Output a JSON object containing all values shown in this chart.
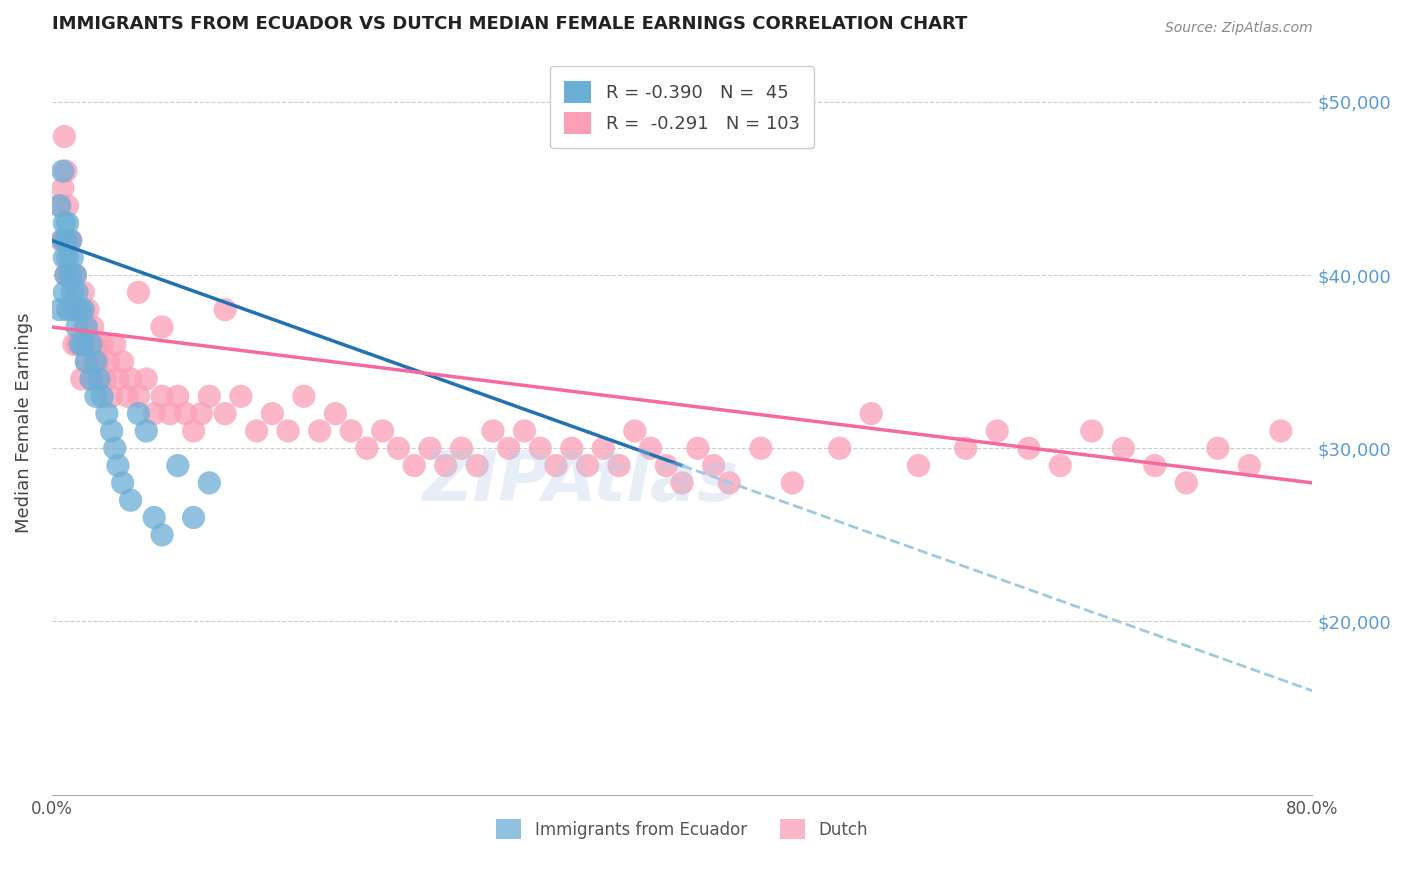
{
  "title": "IMMIGRANTS FROM ECUADOR VS DUTCH MEDIAN FEMALE EARNINGS CORRELATION CHART",
  "source": "Source: ZipAtlas.com",
  "ylabel": "Median Female Earnings",
  "ylim": [
    10000,
    53000
  ],
  "xlim": [
    0.0,
    0.8
  ],
  "legend_blue_r": "R = -0.390",
  "legend_blue_n": "N =  45",
  "legend_pink_r": "R =  -0.291",
  "legend_pink_n": "N = 103",
  "blue_color": "#6baed6",
  "pink_color": "#fa9fb5",
  "blue_line_color": "#2171b5",
  "pink_line_color": "#f768a1",
  "dashed_line_color": "#9ecae1",
  "watermark": "ZIPAtlas",
  "blue_scatter_x": [
    0.005,
    0.005,
    0.007,
    0.007,
    0.008,
    0.008,
    0.008,
    0.009,
    0.009,
    0.01,
    0.01,
    0.01,
    0.012,
    0.012,
    0.013,
    0.013,
    0.015,
    0.015,
    0.016,
    0.016,
    0.018,
    0.018,
    0.02,
    0.02,
    0.022,
    0.022,
    0.025,
    0.025,
    0.028,
    0.028,
    0.03,
    0.032,
    0.035,
    0.038,
    0.04,
    0.042,
    0.045,
    0.05,
    0.055,
    0.06,
    0.065,
    0.07,
    0.08,
    0.09,
    0.1
  ],
  "blue_scatter_y": [
    44000,
    38000,
    46000,
    42000,
    43000,
    41000,
    39000,
    42000,
    40000,
    43000,
    41000,
    38000,
    42000,
    40000,
    41000,
    39000,
    40000,
    38000,
    39000,
    37000,
    38000,
    36000,
    38000,
    36000,
    37000,
    35000,
    36000,
    34000,
    35000,
    33000,
    34000,
    33000,
    32000,
    31000,
    30000,
    29000,
    28000,
    27000,
    32000,
    31000,
    26000,
    25000,
    29000,
    26000,
    28000
  ],
  "pink_scatter_x": [
    0.005,
    0.006,
    0.007,
    0.008,
    0.009,
    0.01,
    0.01,
    0.011,
    0.012,
    0.013,
    0.014,
    0.015,
    0.015,
    0.016,
    0.017,
    0.018,
    0.019,
    0.02,
    0.021,
    0.022,
    0.023,
    0.024,
    0.025,
    0.026,
    0.027,
    0.028,
    0.029,
    0.03,
    0.032,
    0.034,
    0.036,
    0.038,
    0.04,
    0.042,
    0.045,
    0.048,
    0.05,
    0.055,
    0.06,
    0.065,
    0.07,
    0.075,
    0.08,
    0.085,
    0.09,
    0.095,
    0.1,
    0.11,
    0.12,
    0.13,
    0.14,
    0.15,
    0.16,
    0.17,
    0.18,
    0.19,
    0.2,
    0.21,
    0.22,
    0.23,
    0.24,
    0.25,
    0.26,
    0.27,
    0.28,
    0.29,
    0.3,
    0.31,
    0.32,
    0.33,
    0.34,
    0.35,
    0.36,
    0.37,
    0.38,
    0.39,
    0.4,
    0.41,
    0.42,
    0.43,
    0.45,
    0.47,
    0.5,
    0.52,
    0.55,
    0.58,
    0.6,
    0.62,
    0.64,
    0.66,
    0.68,
    0.7,
    0.72,
    0.74,
    0.76,
    0.78,
    0.008,
    0.009,
    0.01,
    0.012,
    0.055,
    0.07,
    0.11
  ],
  "pink_scatter_y": [
    44000,
    42000,
    45000,
    42000,
    40000,
    42000,
    40000,
    38000,
    40000,
    38000,
    36000,
    40000,
    38000,
    36000,
    38000,
    36000,
    34000,
    39000,
    37000,
    35000,
    38000,
    36000,
    34000,
    37000,
    35000,
    36000,
    34000,
    35000,
    36000,
    34000,
    35000,
    33000,
    36000,
    34000,
    35000,
    33000,
    34000,
    33000,
    34000,
    32000,
    33000,
    32000,
    33000,
    32000,
    31000,
    32000,
    33000,
    32000,
    33000,
    31000,
    32000,
    31000,
    33000,
    31000,
    32000,
    31000,
    30000,
    31000,
    30000,
    29000,
    30000,
    29000,
    30000,
    29000,
    31000,
    30000,
    31000,
    30000,
    29000,
    30000,
    29000,
    30000,
    29000,
    31000,
    30000,
    29000,
    28000,
    30000,
    29000,
    28000,
    30000,
    28000,
    30000,
    32000,
    29000,
    30000,
    31000,
    30000,
    29000,
    31000,
    30000,
    29000,
    28000,
    30000,
    29000,
    31000,
    48000,
    46000,
    44000,
    42000,
    39000,
    37000,
    38000
  ]
}
